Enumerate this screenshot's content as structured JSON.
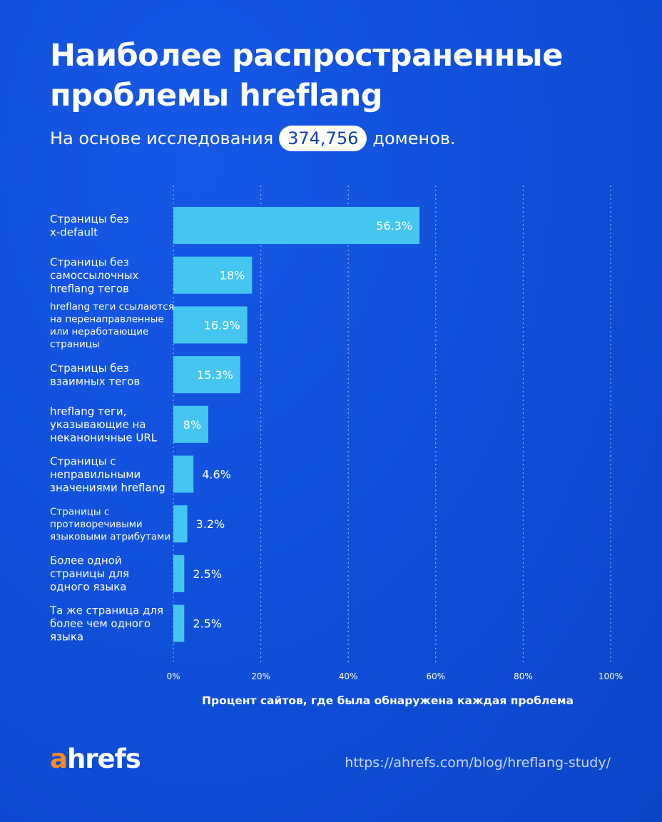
{
  "header": {
    "title_line1": "Наиболее распространенные",
    "title_line2": "проблемы hreflang",
    "subtitle_prefix": "На основе исследования",
    "subtitle_count": "374,756",
    "subtitle_suffix": "доменов."
  },
  "chart_data": {
    "type": "bar",
    "orientation": "horizontal",
    "categories": [
      [
        "Страницы без",
        "x-default"
      ],
      [
        "Страницы без",
        "самоссылочных",
        "hreflang тегов"
      ],
      [
        "hreflang теги ссылаются",
        "на перенаправленные",
        "или неработающие",
        "страницы"
      ],
      [
        "Страницы без",
        "взаимных тегов"
      ],
      [
        "hreflang теги,",
        "указывающие на",
        "неканоничные URL"
      ],
      [
        "Страницы с",
        "неправильными",
        "значениями hreflang"
      ],
      [
        "Страницы с",
        "противоречивыми",
        "языковыми атрибутами"
      ],
      [
        "Более одной",
        "страницы для",
        "одного языка"
      ],
      [
        "Та же страница для",
        "более чем одного",
        "языка"
      ]
    ],
    "values": [
      56.3,
      18,
      16.9,
      15.3,
      8,
      4.6,
      3.2,
      2.5,
      2.5
    ],
    "data_labels": [
      "56.3%",
      "18%",
      "16.9%",
      "15.3%",
      "8%",
      "4.6%",
      "3.2%",
      "2.5%",
      "2.5%"
    ],
    "xlim": [
      0,
      100
    ],
    "x_ticks": [
      0,
      20,
      40,
      60,
      80,
      100
    ],
    "x_tick_labels": [
      "0%",
      "20%",
      "40%",
      "60%",
      "80%",
      "100%"
    ],
    "xlabel": "Процент сайтов, где была обнаружена каждая проблема",
    "grid": "vertical dashed",
    "colors": {
      "bar": "#45c6f0",
      "grid": "#b9ccff",
      "label": "#ffffff"
    }
  },
  "footer": {
    "logo_a": "a",
    "logo_rest": "hrefs",
    "url": "https://ahrefs.com/blog/hreflang-study/"
  },
  "colors": {
    "background": "#0f4fd8",
    "accent_orange": "#ff8a1f",
    "bar": "#45c6f0"
  }
}
